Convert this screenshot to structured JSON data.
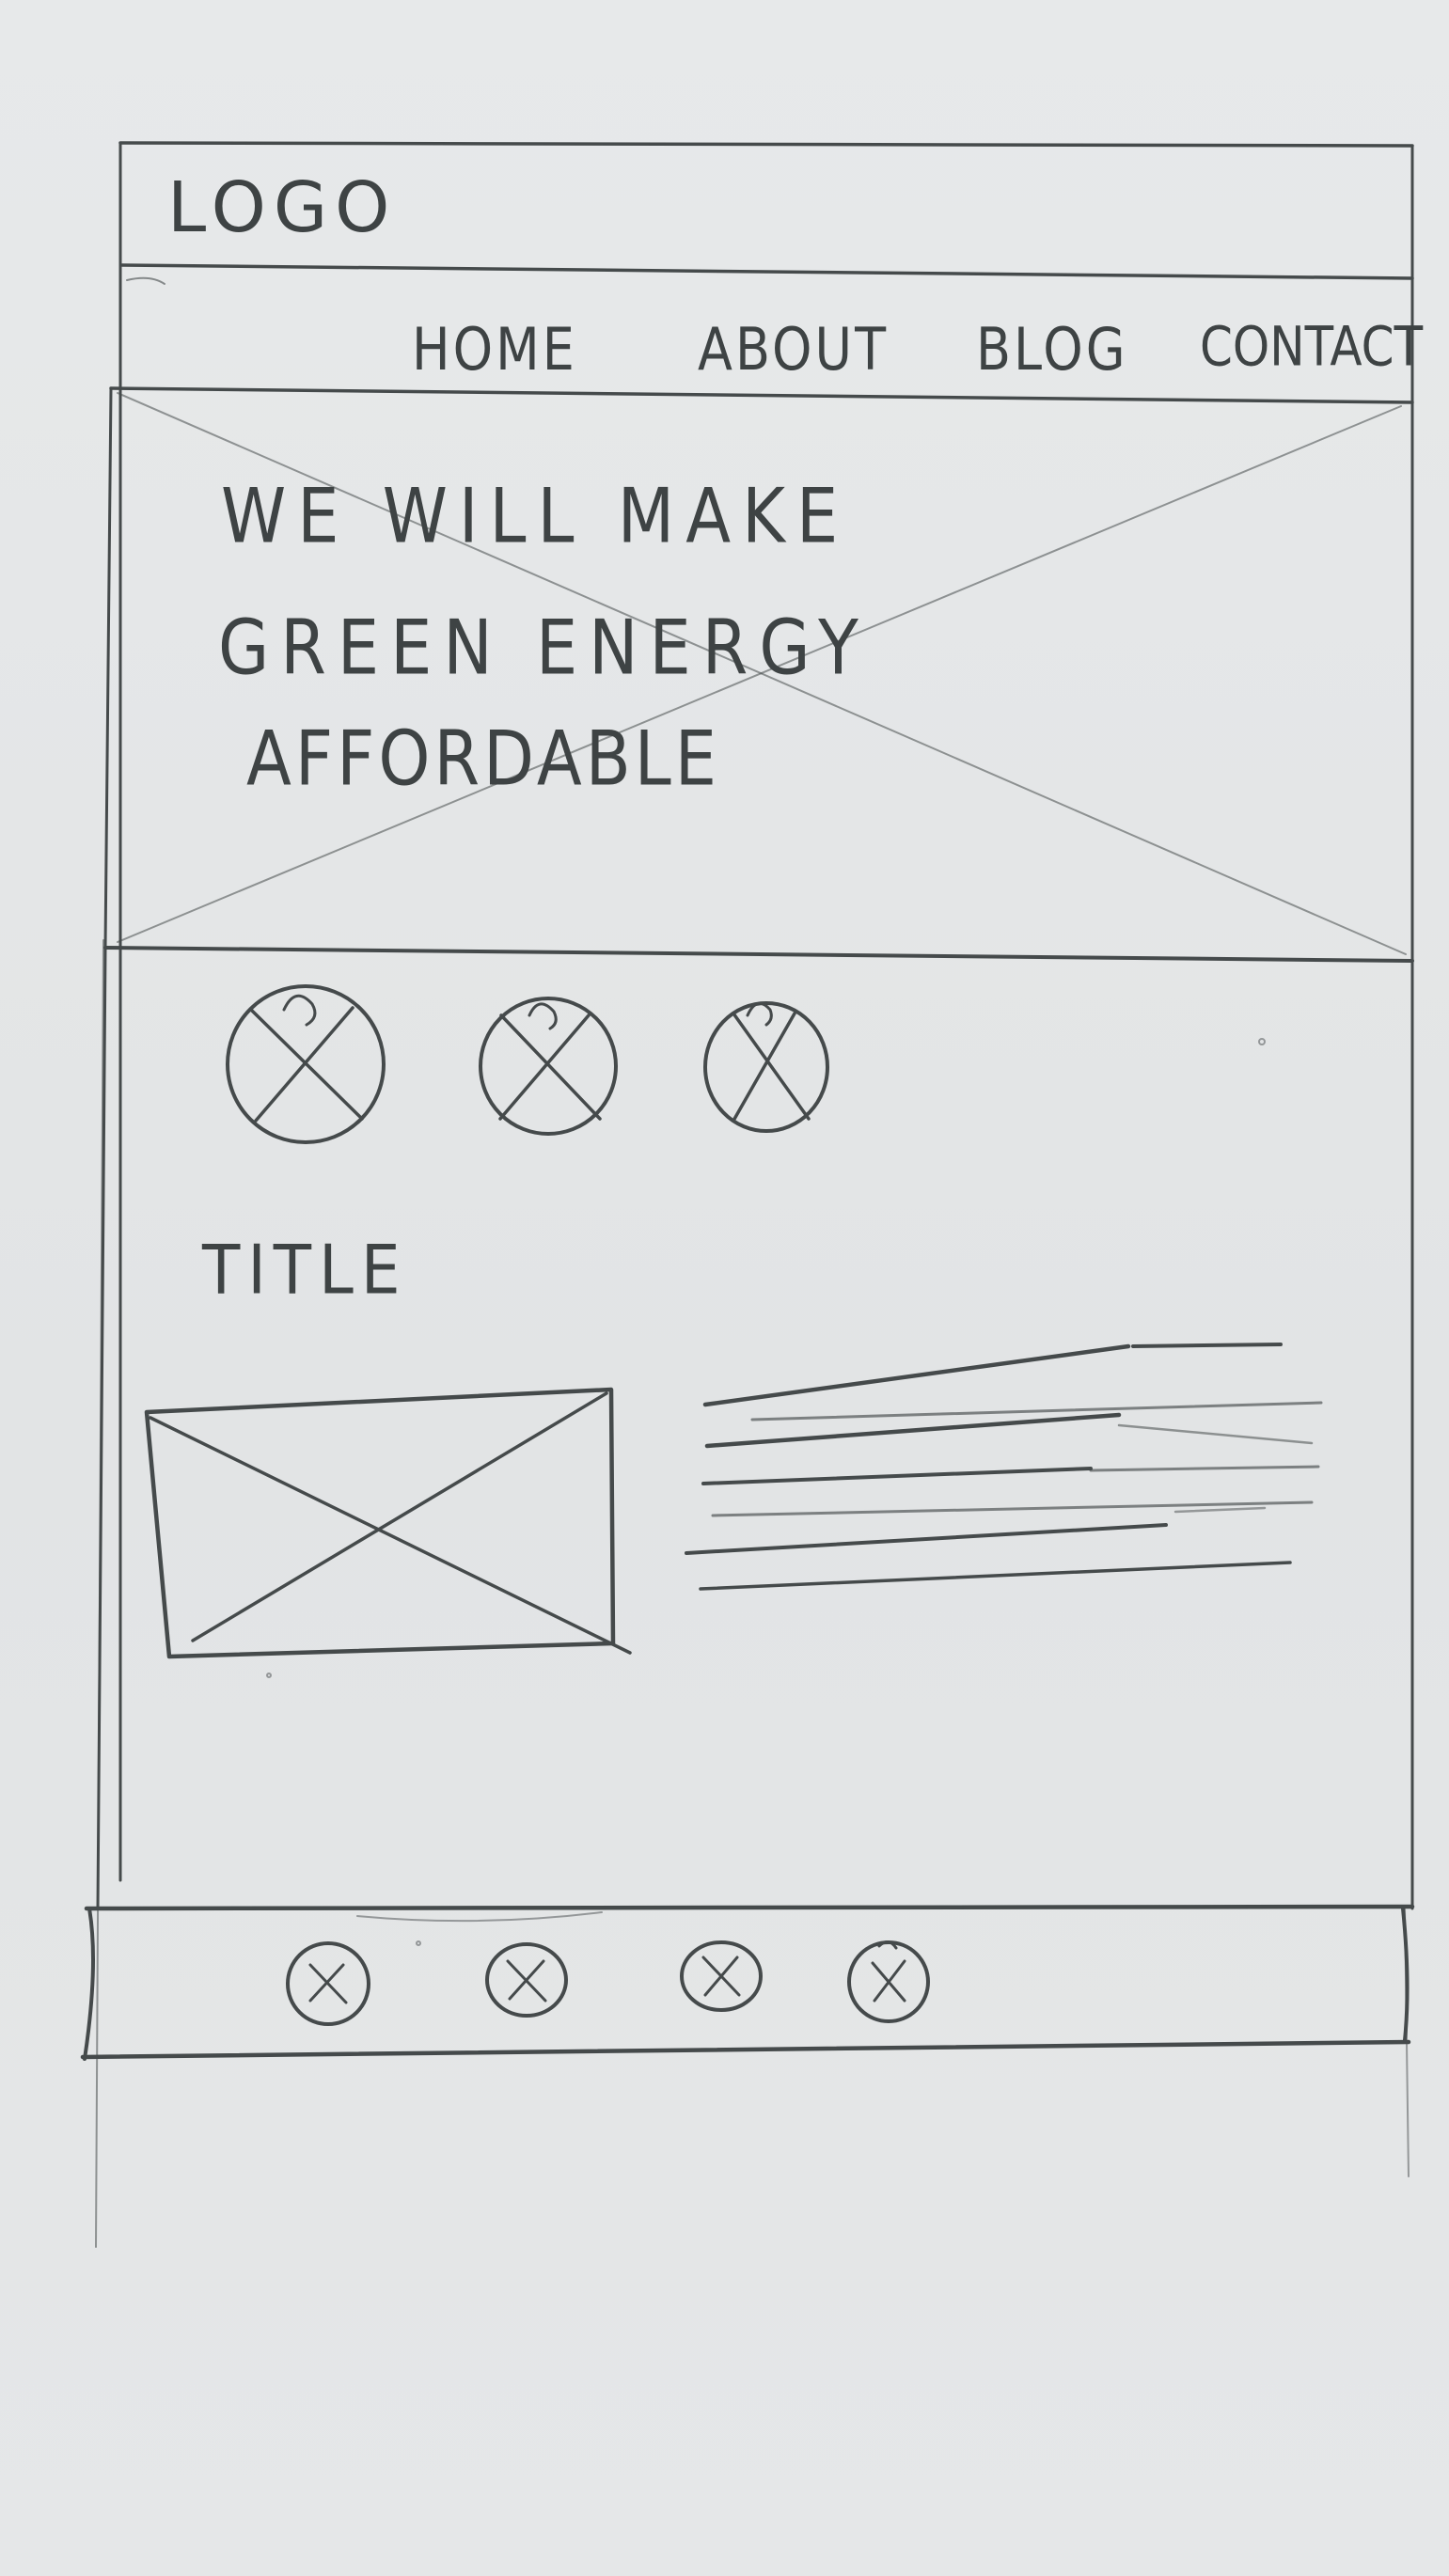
{
  "header": {
    "logo_text": "LOGO"
  },
  "nav": {
    "items": [
      {
        "label": "HOME"
      },
      {
        "label": "ABOUT"
      },
      {
        "label": "BLOG"
      },
      {
        "label": "CONTACT"
      }
    ]
  },
  "hero": {
    "lines": [
      "WE WILL MAKE",
      "GREEN ENERGY",
      "AFFORDABLE"
    ]
  },
  "features": {
    "icons": [
      "placeholder-icon",
      "placeholder-icon",
      "placeholder-icon"
    ]
  },
  "content": {
    "title": "TITLE"
  },
  "footer": {
    "icons": [
      "placeholder-icon",
      "placeholder-icon",
      "placeholder-icon",
      "placeholder-icon"
    ]
  },
  "colors": {
    "paper": "#e3e5e6",
    "pencil": "#454a4b"
  }
}
